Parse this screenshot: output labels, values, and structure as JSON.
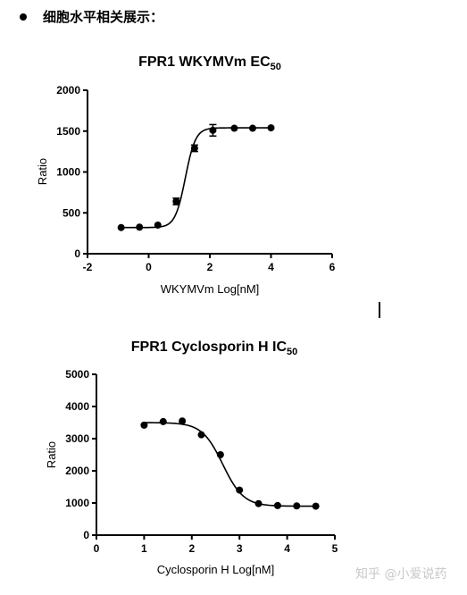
{
  "header": {
    "text": "细胞水平相关展示："
  },
  "watermark": "知乎 @小爱说药",
  "chart_data": [
    {
      "type": "scatter",
      "title": "FPR1 WKYMVm EC",
      "title_subscript": "50",
      "xlabel": "WKYMVm Log[nM]",
      "ylabel": "Ratio",
      "xlim": [
        -2,
        6
      ],
      "ylim": [
        0,
        2000
      ],
      "xticks": [
        -2,
        0,
        2,
        4,
        6
      ],
      "yticks": [
        0,
        500,
        1000,
        1500,
        2000
      ],
      "x": [
        -0.9,
        -0.3,
        0.3,
        0.9,
        1.5,
        2.1,
        2.8,
        3.4,
        4.0
      ],
      "y": [
        320,
        325,
        350,
        640,
        1290,
        1510,
        1535,
        1535,
        1540
      ],
      "error": [
        0,
        0,
        0,
        40,
        40,
        70,
        0,
        0,
        0
      ],
      "fit": {
        "model": "sigmoid",
        "bottom": 320,
        "top": 1540,
        "x50": 1.2,
        "hill": 2.6
      }
    },
    {
      "type": "scatter",
      "title": "FPR1 Cyclosporin H IC",
      "title_subscript": "50",
      "xlabel": "Cyclosporin H  Log[nM]",
      "ylabel": "Ratio",
      "xlim": [
        0,
        5
      ],
      "ylim": [
        0,
        5000
      ],
      "xticks": [
        0,
        1,
        2,
        3,
        4,
        5
      ],
      "yticks": [
        0,
        1000,
        2000,
        3000,
        4000,
        5000
      ],
      "x": [
        1.0,
        1.4,
        1.8,
        2.2,
        2.6,
        3.0,
        3.4,
        3.8,
        4.2,
        4.6
      ],
      "y": [
        3420,
        3530,
        3550,
        3120,
        2500,
        1400,
        980,
        920,
        910,
        900
      ],
      "error": [
        0,
        0,
        0,
        0,
        0,
        0,
        0,
        0,
        0,
        0
      ],
      "fit": {
        "model": "sigmoid",
        "bottom": 900,
        "top": 3500,
        "x50": 2.65,
        "hill": -2.0
      }
    }
  ]
}
